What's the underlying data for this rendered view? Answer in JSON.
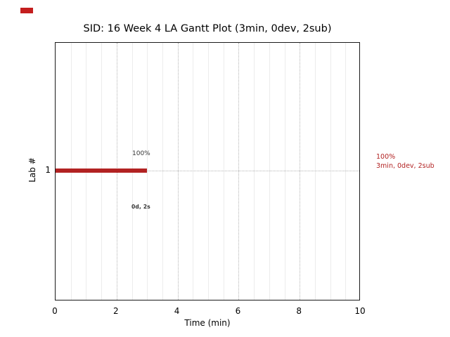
{
  "title": "SID: 16 Week 4 LA Gantt Plot (3min, 0dev, 2sub)",
  "axes": {
    "xlabel": "Time (min)",
    "ylabel": "Lab #",
    "x_ticks": [
      "0",
      "2",
      "4",
      "6",
      "8",
      "10"
    ],
    "y_ticks": [
      "1"
    ]
  },
  "bar": {
    "row": "1",
    "label_above": "100%",
    "label_below": "0d, 2s",
    "color": "#b22222"
  },
  "legend": {
    "line1": "100%",
    "line2": "3min, 0dev, 2sub",
    "color": "#b22222"
  },
  "marker": {
    "color": "#c41e1e"
  },
  "chart_data": {
    "type": "bar",
    "orientation": "horizontal",
    "title": "SID: 16 Week 4 LA Gantt Plot (3min, 0dev, 2sub)",
    "xlabel": "Time (min)",
    "ylabel": "Lab #",
    "xlim": [
      0,
      10
    ],
    "x_ticks": [
      0,
      2,
      4,
      6,
      8,
      10
    ],
    "x_minor_step": 0.5,
    "categories": [
      "1"
    ],
    "series": [
      {
        "name": "lab-1-task",
        "row": "1",
        "start": 0,
        "duration": 3,
        "completion_label": "100%",
        "annotation_below": "0d, 2s",
        "color": "#b22222"
      }
    ],
    "right_annotations": [
      "100%",
      "3min, 0dev, 2sub"
    ],
    "grid": {
      "vertical_major": "dotted",
      "vertical_minor": "solid-light",
      "horizontal_at_rows": "dotted"
    },
    "legend_position": "right-outside",
    "bar_color": "#b22222"
  }
}
